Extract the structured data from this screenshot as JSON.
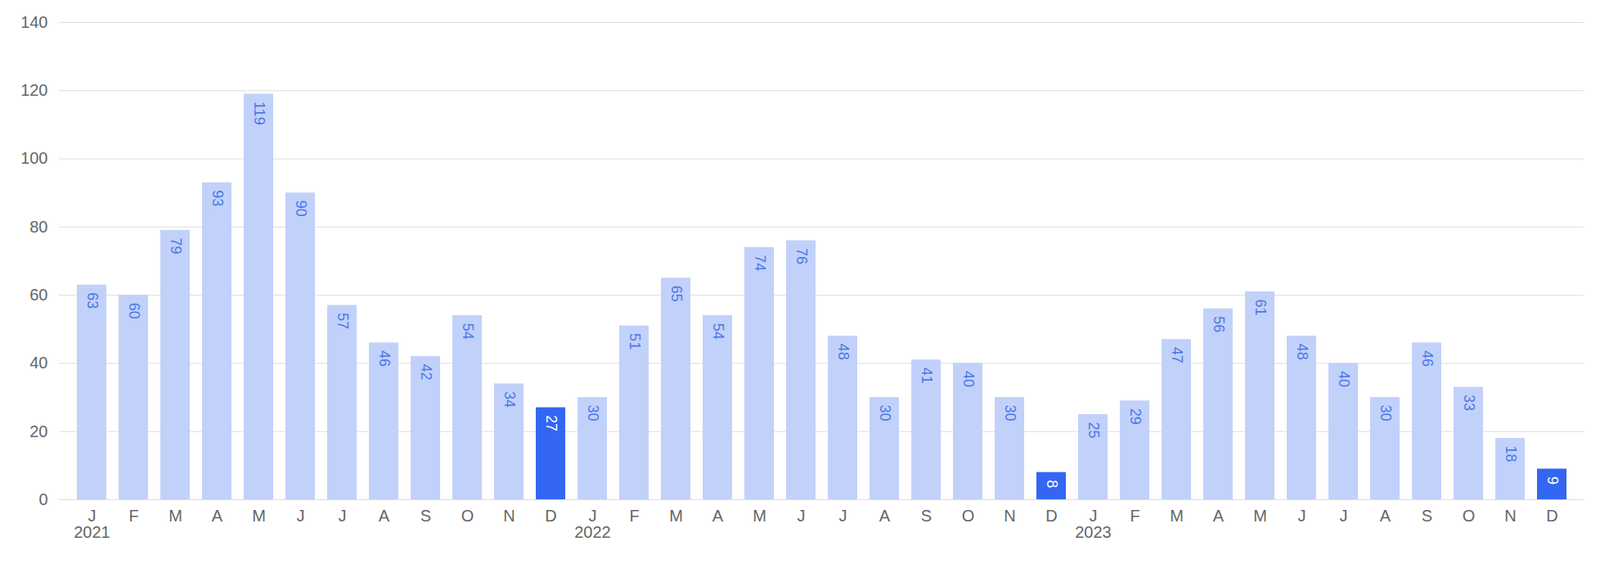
{
  "chart_data": {
    "type": "bar",
    "categories": [
      "J\n2021",
      "F",
      "M",
      "A",
      "M",
      "J",
      "J",
      "A",
      "S",
      "O",
      "N",
      "D",
      "J\n2022",
      "F",
      "M",
      "A",
      "M",
      "J",
      "J",
      "A",
      "S",
      "O",
      "N",
      "D",
      "J\n2023",
      "F",
      "M",
      "A",
      "M",
      "J",
      "J",
      "A",
      "S",
      "O",
      "N",
      "D"
    ],
    "values": [
      63,
      60,
      79,
      93,
      119,
      90,
      57,
      46,
      42,
      54,
      34,
      27,
      30,
      51,
      65,
      54,
      74,
      76,
      48,
      30,
      41,
      40,
      30,
      8,
      25,
      29,
      47,
      56,
      61,
      48,
      40,
      30,
      46,
      33,
      18,
      9
    ],
    "colors": [
      "#c2d1fa",
      "#c2d1fa",
      "#c2d1fa",
      "#c2d1fa",
      "#c2d1fa",
      "#c2d1fa",
      "#c2d1fa",
      "#c2d1fa",
      "#c2d1fa",
      "#c2d1fa",
      "#c2d1fa",
      "#3366f2",
      "#c2d1fa",
      "#c2d1fa",
      "#c2d1fa",
      "#c2d1fa",
      "#c2d1fa",
      "#c2d1fa",
      "#c2d1fa",
      "#c2d1fa",
      "#c2d1fa",
      "#c2d1fa",
      "#c2d1fa",
      "#3366f2",
      "#c2d1fa",
      "#c2d1fa",
      "#c2d1fa",
      "#c2d1fa",
      "#c2d1fa",
      "#c2d1fa",
      "#c2d1fa",
      "#c2d1fa",
      "#c2d1fa",
      "#c2d1fa",
      "#c2d1fa",
      "#3366f2"
    ],
    "ylim": [
      0,
      140
    ],
    "yticks": [
      0,
      20,
      40,
      60,
      80,
      100,
      120,
      140
    ],
    "grid": true,
    "data_labels": true
  }
}
